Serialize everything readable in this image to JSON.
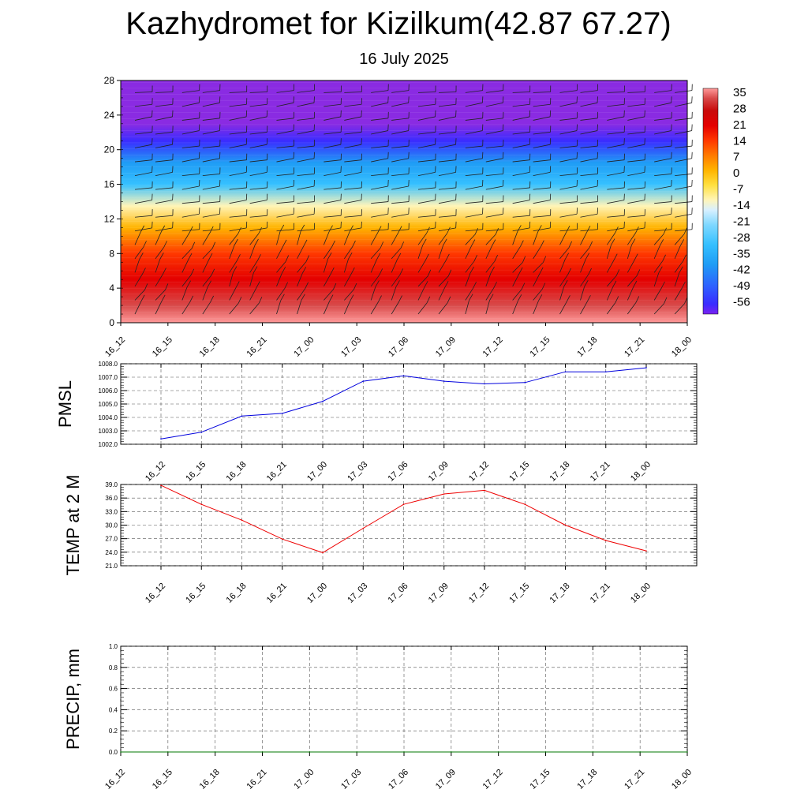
{
  "header": {
    "title": "Kazhydromet for Kizilkum(42.87 67.27)",
    "subtitle": "16 July 2025"
  },
  "colorbar": {
    "labels": [
      "35",
      "28",
      "21",
      "14",
      "7",
      "0",
      "-7",
      "-14",
      "-21",
      "-28",
      "-35",
      "-42",
      "-49",
      "-56"
    ]
  },
  "chart_data": [
    {
      "type": "heatmap",
      "name": "cross-section",
      "title": "",
      "x_ticks": [
        "16_12",
        "16_15",
        "16_18",
        "16_21",
        "17_00",
        "17_03",
        "17_06",
        "17_09",
        "17_12",
        "17_15",
        "17_18",
        "17_21",
        "18_00"
      ],
      "y_ticks": [
        0,
        4,
        8,
        12,
        16,
        20,
        24,
        28
      ],
      "ylim": [
        0,
        28
      ],
      "colorbar_range": [
        -56,
        35
      ],
      "colors": {
        "top": "#8a2be2",
        "cold": "#3030ff",
        "cool": "#28a8f0",
        "neutral": "#fff7c0",
        "warm": "#ffb000",
        "hot": "#d80000",
        "surface": "#ffb0b0"
      },
      "profile": [
        {
          "level": 0,
          "value": 36
        },
        {
          "level": 2,
          "value": 32
        },
        {
          "level": 5,
          "value": 24
        },
        {
          "level": 8,
          "value": 14
        },
        {
          "level": 11,
          "value": 4
        },
        {
          "level": 13.5,
          "value": -8
        },
        {
          "level": 16,
          "value": -22
        },
        {
          "level": 18.5,
          "value": -34
        },
        {
          "level": 21,
          "value": -52
        },
        {
          "level": 23,
          "value": -58
        },
        {
          "level": 28,
          "value": -60
        }
      ],
      "wind_barbs": true
    },
    {
      "type": "line",
      "name": "pmsl",
      "ylabel": "PMSL",
      "x": [
        "16_12",
        "16_15",
        "16_18",
        "16_21",
        "17_00",
        "17_03",
        "17_06",
        "17_09",
        "17_12",
        "17_15",
        "17_18",
        "17_21",
        "18_00"
      ],
      "values": [
        1002.4,
        1002.9,
        1004.1,
        1004.3,
        1005.2,
        1006.7,
        1007.1,
        1006.7,
        1006.5,
        1006.6,
        1007.4,
        1007.4,
        1007.7
      ],
      "ylim": [
        1002.0,
        1008.0
      ],
      "y_ticks": [
        "1002.0",
        "1003.0",
        "1004.0",
        "1005.0",
        "1006.0",
        "1007.0",
        "1008.0"
      ],
      "color": "#0000dd",
      "grid": true
    },
    {
      "type": "line",
      "name": "temp",
      "ylabel": "TEMP at 2 M",
      "x": [
        "16_12",
        "16_15",
        "16_18",
        "16_21",
        "17_00",
        "17_03",
        "17_06",
        "17_09",
        "17_12",
        "17_15",
        "17_18",
        "17_21",
        "18_00"
      ],
      "values": [
        38.8,
        34.6,
        31.1,
        26.9,
        23.9,
        29.3,
        34.6,
        36.9,
        37.7,
        34.6,
        30.0,
        26.6,
        24.3
      ],
      "ylim": [
        21.0,
        39.0
      ],
      "y_ticks": [
        "21.0",
        "24.0",
        "27.0",
        "30.0",
        "33.0",
        "36.0",
        "39.0"
      ],
      "color": "#ee0000",
      "grid": true
    },
    {
      "type": "line",
      "name": "precip",
      "ylabel": "PRECIP, mm",
      "x": [
        "16_12",
        "16_15",
        "16_18",
        "16_21",
        "17_00",
        "17_03",
        "17_06",
        "17_09",
        "17_12",
        "17_15",
        "17_18",
        "17_21",
        "18_00"
      ],
      "values": [
        0,
        0,
        0,
        0,
        0,
        0,
        0,
        0,
        0,
        0,
        0,
        0,
        0
      ],
      "ylim": [
        0.0,
        1.0
      ],
      "y_ticks": [
        "0.0",
        "0.2",
        "0.4",
        "0.6",
        "0.8",
        "1.0"
      ],
      "color": "#007700",
      "grid": true
    }
  ]
}
